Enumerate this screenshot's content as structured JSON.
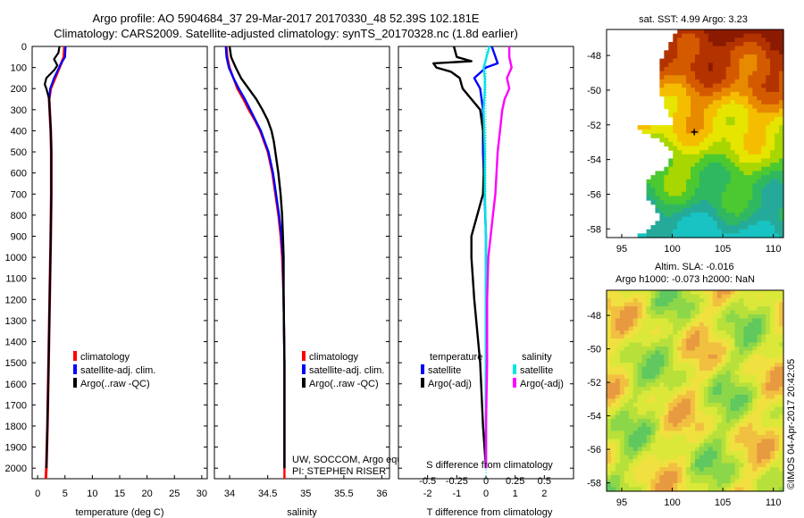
{
  "header": {
    "line1": "Argo profile: AO 5904684_37 29-Mar-2017 20170330_48 52.39S 102.181E",
    "line2": "Climatology: CARS2009. Satellite-adjusted climatology: synTS_20170328.nc (1.8d earlier)"
  },
  "depth_ticks": [
    "0",
    "100",
    "200",
    "300",
    "400",
    "500",
    "600",
    "700",
    "800",
    "900",
    "1000",
    "1100",
    "1200",
    "1300",
    "1400",
    "1500",
    "1600",
    "1700",
    "1800",
    "1900",
    "2000"
  ],
  "credit": {
    "line1": "UW, SOCCOM, Argo equivalent",
    "line2": "PI: STEPHEN RISER"
  },
  "side_text": "©IMOS 04-Apr-2017 20:42:05",
  "colors": {
    "climatology": "#ff0000",
    "satellite": "#0000ff",
    "argo": "#000000",
    "sal_sat": "#00e5e5",
    "sal_argo": "#ff00ff"
  },
  "chart_data": [
    {
      "type": "line",
      "id": "temperature",
      "xlabel": "temperature (deg C)",
      "ylabel": "depth",
      "xlim": [
        -1,
        31
      ],
      "ylim": [
        2050,
        0
      ],
      "xticks": [
        "0",
        "5",
        "10",
        "15",
        "20",
        "25",
        "30"
      ],
      "legend": [
        "climatology",
        "satellite-adj. clim.",
        "Argo(..raw -QC)"
      ],
      "series": [
        {
          "name": "climatology",
          "color": "#ff0000",
          "depth": [
            0,
            50,
            100,
            150,
            200,
            250,
            300,
            400,
            500,
            700,
            900,
            1200,
            1500,
            1800,
            2000,
            2050
          ],
          "values": [
            4.9,
            4.8,
            4.0,
            3.2,
            2.4,
            2.1,
            2.2,
            2.4,
            2.5,
            2.5,
            2.4,
            2.2,
            2.0,
            1.8,
            1.6,
            1.5
          ]
        },
        {
          "name": "satellite-adj. clim.",
          "color": "#0000ff",
          "depth": [
            0,
            50,
            80,
            150,
            200,
            250,
            300,
            400,
            500,
            700,
            900,
            1200,
            1500,
            1800,
            2000
          ],
          "values": [
            5.1,
            5.0,
            4.3,
            3.0,
            2.3,
            2.1,
            2.2,
            2.4,
            2.5,
            2.5,
            2.4,
            2.2,
            2.0,
            1.8,
            1.6
          ]
        },
        {
          "name": "Argo(..raw -QC)",
          "color": "#000000",
          "depth": [
            0,
            30,
            60,
            90,
            110,
            150,
            180,
            200,
            250,
            300,
            400,
            500,
            700,
            900,
            1200,
            1500,
            1800,
            2000
          ],
          "values": [
            4.0,
            3.8,
            3.0,
            3.6,
            3.1,
            1.6,
            1.3,
            1.6,
            2.1,
            2.2,
            2.4,
            2.5,
            2.5,
            2.4,
            2.2,
            2.0,
            1.8,
            1.6
          ]
        }
      ]
    },
    {
      "type": "line",
      "id": "salinity",
      "xlabel": "salinity",
      "ylabel": "depth",
      "xlim": [
        33.8,
        36.1
      ],
      "ylim": [
        2050,
        0
      ],
      "xticks": [
        "34",
        "34.5",
        "35",
        "35.5",
        "36"
      ],
      "legend": [
        "climatology",
        "satellite-adj. clim.",
        "Argo(..raw -QC)"
      ],
      "series": [
        {
          "name": "climatology",
          "color": "#ff0000",
          "depth": [
            0,
            50,
            100,
            150,
            200,
            250,
            300,
            350,
            400,
            450,
            500,
            600,
            700,
            800,
            900,
            1000,
            1200,
            1500,
            1800,
            2000,
            2050
          ],
          "values": [
            33.96,
            33.97,
            34.0,
            34.05,
            34.1,
            34.18,
            34.25,
            34.33,
            34.4,
            34.45,
            34.5,
            34.56,
            34.6,
            34.64,
            34.67,
            34.69,
            34.71,
            34.72,
            34.72,
            34.72,
            34.72
          ]
        },
        {
          "name": "satellite-adj. clim.",
          "color": "#0000ff",
          "depth": [
            0,
            50,
            100,
            150,
            200,
            250,
            300,
            350,
            400,
            450,
            500,
            600,
            700,
            800,
            900,
            1000,
            1200,
            1500,
            1800,
            2000
          ],
          "values": [
            33.95,
            33.96,
            33.99,
            34.05,
            34.12,
            34.2,
            34.27,
            34.34,
            34.41,
            34.46,
            34.51,
            34.57,
            34.61,
            34.65,
            34.68,
            34.7,
            34.71,
            34.72,
            34.72,
            34.72
          ]
        },
        {
          "name": "Argo(..raw -QC)",
          "color": "#000000",
          "depth": [
            0,
            50,
            100,
            150,
            200,
            250,
            300,
            350,
            400,
            450,
            500,
            600,
            700,
            800,
            900,
            1000,
            1200,
            1500,
            1800,
            2000
          ],
          "values": [
            34.0,
            34.02,
            34.08,
            34.15,
            34.25,
            34.35,
            34.43,
            34.5,
            34.55,
            34.58,
            34.6,
            34.64,
            34.67,
            34.69,
            34.7,
            34.71,
            34.71,
            34.72,
            34.72,
            34.72
          ]
        }
      ]
    },
    {
      "type": "line",
      "id": "difference",
      "xlabel": "T difference from climatology",
      "xlabel_top": "S difference from climatology",
      "ylabel": "depth",
      "xlim": [
        -3,
        3
      ],
      "ylim": [
        2050,
        0
      ],
      "xticks": [
        "-2",
        "-1",
        "0",
        "1",
        "2"
      ],
      "s_xticks": [
        "-0.5",
        "-0.25",
        "0",
        "0.25",
        "0.5"
      ],
      "legend_titles": [
        "temperature",
        "salinity"
      ],
      "legend": [
        "satellite",
        "Argo(-adj)",
        "satellite",
        "Argo(-adj)"
      ],
      "series": [
        {
          "name": "temperature satellite",
          "color": "#0000ff",
          "depth": [
            0,
            40,
            80,
            100,
            150,
            200,
            300,
            500,
            700,
            900,
            1000,
            1100,
            1200,
            1400,
            1600,
            1800,
            2000
          ],
          "values": [
            0.2,
            0.3,
            0.4,
            0.0,
            -0.4,
            -0.2,
            -0.1,
            -0.1,
            -0.05,
            0,
            0,
            0,
            0,
            0,
            0,
            0,
            0
          ]
        },
        {
          "name": "temperature Argo(-adj)",
          "color": "#000000",
          "depth": [
            0,
            50,
            70,
            80,
            100,
            120,
            150,
            200,
            250,
            300,
            400,
            500,
            700,
            800,
            900,
            1000,
            1200,
            1500,
            1800,
            2000
          ],
          "values": [
            -1.1,
            -1.0,
            -0.5,
            -1.8,
            -1.7,
            -1.2,
            -0.9,
            -0.8,
            -0.5,
            -0.2,
            -0.1,
            -0.05,
            -0.1,
            -0.3,
            -0.5,
            -0.5,
            -0.4,
            -0.2,
            -0.1,
            0
          ]
        },
        {
          "name": "salinity satellite",
          "color": "#00e5e5",
          "depth": [
            0,
            100,
            150,
            200,
            300,
            500,
            700,
            900,
            1200,
            1500,
            1800,
            2000
          ],
          "values": [
            0.03,
            -0.02,
            -0.01,
            -0.01,
            -0.02,
            -0.01,
            -0.01,
            0.0,
            0.0,
            0.0,
            0.0,
            0.0
          ]
        },
        {
          "name": "salinity Argo(-adj)",
          "color": "#ff00ff",
          "depth": [
            0,
            50,
            100,
            150,
            200,
            250,
            300,
            400,
            500,
            600,
            700,
            800,
            900,
            1000,
            1200,
            1500,
            1800,
            2000
          ],
          "values": [
            0.2,
            0.2,
            0.22,
            0.18,
            0.2,
            0.16,
            0.14,
            0.12,
            0.1,
            0.09,
            0.08,
            0.06,
            0.04,
            0.02,
            0.01,
            0.01,
            0.0,
            0.0
          ]
        }
      ]
    },
    {
      "type": "heatmap",
      "id": "sst-map",
      "title": "sat. SST: 4.99 Argo: 3.23",
      "xlim": [
        93.5,
        111
      ],
      "ylim": [
        -58.5,
        -46.5
      ],
      "xticks": [
        "95",
        "100",
        "105",
        "110"
      ],
      "yticks": [
        "-48",
        "-50",
        "-52",
        "-54",
        "-56",
        "-58"
      ]
    },
    {
      "type": "heatmap",
      "id": "sla-map",
      "title_line1": "Altim. SLA: -0.016",
      "title_line2": "Argo h1000: -0.073 h2000: NaN",
      "xlim": [
        93.5,
        111
      ],
      "ylim": [
        -58.5,
        -46.5
      ],
      "xticks": [
        "95",
        "100",
        "105",
        "110"
      ],
      "yticks": [
        "-48",
        "-50",
        "-52",
        "-54",
        "-56",
        "-58"
      ]
    }
  ]
}
